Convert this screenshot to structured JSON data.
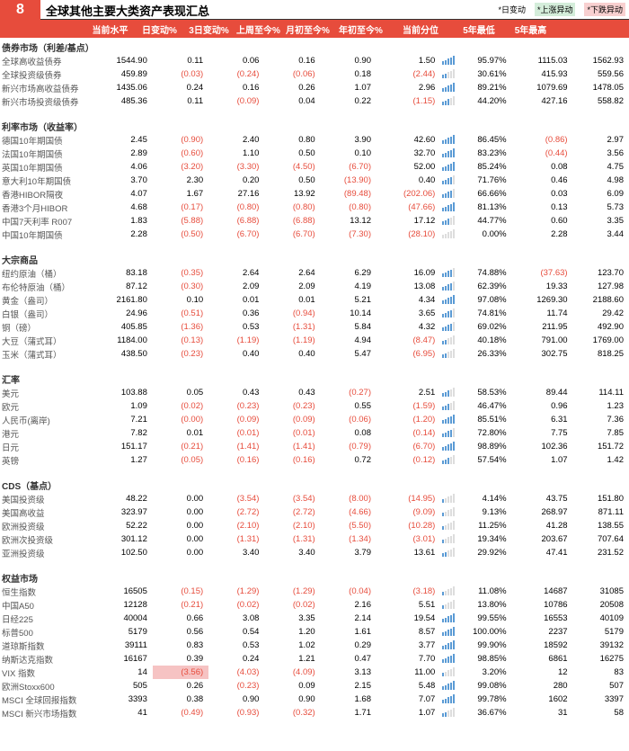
{
  "pageNum": "8",
  "title": "全球其他主要大类资产表现汇总",
  "legend": {
    "a": "*日变动",
    "b": "*上涨异动",
    "c": "*下跌异动"
  },
  "cols": [
    "当前水平",
    "日变动%",
    "3日变动%",
    "上周至今%",
    "月初至今%",
    "年初至今%",
    "当前分位",
    "5年最低",
    "5年最高"
  ],
  "sections": [
    {
      "name": "债券市场（利差/基点）",
      "rows": [
        [
          "全球高收益债券",
          "1544.90",
          "0.11",
          "0.06",
          "0.16",
          "0.90",
          "1.50",
          "95.97%",
          "1115.03",
          "1562.93",
          0,
          0,
          0,
          0,
          0,
          0,
          5
        ],
        [
          "全球投资级债券",
          "459.89",
          "(0.03)",
          "(0.24)",
          "(0.06)",
          "0.18",
          "(2.44)",
          "30.61%",
          "415.93",
          "559.56",
          0,
          1,
          1,
          1,
          0,
          1,
          2
        ],
        [
          "新兴市场高收益债券",
          "1435.06",
          "0.24",
          "0.16",
          "0.26",
          "1.07",
          "2.96",
          "89.21%",
          "1079.69",
          "1478.05",
          0,
          0,
          0,
          0,
          0,
          0,
          5
        ],
        [
          "新兴市场投资级债券",
          "485.36",
          "0.11",
          "(0.09)",
          "0.04",
          "0.22",
          "(1.15)",
          "44.20%",
          "427.16",
          "558.82",
          0,
          0,
          1,
          0,
          0,
          1,
          3
        ]
      ]
    },
    {
      "name": "利率市场（收益率）",
      "rows": [
        [
          "德国10年期国债",
          "2.45",
          "(0.90)",
          "2.40",
          "0.80",
          "3.90",
          "42.60",
          "86.45%",
          "(0.86)",
          "2.97",
          0,
          1,
          0,
          0,
          0,
          0,
          5,
          1,
          0
        ],
        [
          "法国10年期国债",
          "2.89",
          "(0.60)",
          "1.10",
          "0.50",
          "0.10",
          "32.70",
          "83.23%",
          "(0.44)",
          "3.56",
          0,
          1,
          0,
          0,
          0,
          0,
          5,
          1,
          0
        ],
        [
          "英国10年期国债",
          "4.06",
          "(3.20)",
          "(3.30)",
          "(4.50)",
          "(6.70)",
          "52.00",
          "85.24%",
          "0.08",
          "4.75",
          0,
          1,
          1,
          1,
          1,
          0,
          5
        ],
        [
          "意大利10年期国债",
          "3.70",
          "2.30",
          "0.20",
          "0.50",
          "(13.90)",
          "0.40",
          "71.76%",
          "0.46",
          "4.98",
          0,
          0,
          0,
          0,
          1,
          0,
          4
        ],
        [
          "香港HIBOR隔夜",
          "4.07",
          "1.67",
          "27.16",
          "13.92",
          "(89.48)",
          "(202.06)",
          "66.66%",
          "0.03",
          "6.09",
          0,
          0,
          0,
          0,
          1,
          1,
          4
        ],
        [
          "香港3个月HIBOR",
          "4.68",
          "(0.17)",
          "(0.80)",
          "(0.80)",
          "(0.80)",
          "(47.66)",
          "81.13%",
          "0.13",
          "5.73",
          0,
          1,
          1,
          1,
          1,
          1,
          5
        ],
        [
          "中国7天利率 R007",
          "1.83",
          "(5.88)",
          "(6.88)",
          "(6.88)",
          "13.12",
          "17.12",
          "44.77%",
          "0.60",
          "3.35",
          0,
          1,
          1,
          1,
          0,
          0,
          3
        ],
        [
          "中国10年期国债",
          "2.28",
          "(0.50)",
          "(6.70)",
          "(6.70)",
          "(7.30)",
          "(28.10)",
          "0.00%",
          "2.28",
          "3.44",
          0,
          1,
          1,
          1,
          1,
          1,
          0
        ]
      ]
    },
    {
      "name": "大宗商品",
      "rows": [
        [
          "纽约原油（桶）",
          "83.18",
          "(0.35)",
          "2.64",
          "2.64",
          "6.29",
          "16.09",
          "74.88%",
          "(37.63)",
          "123.70",
          0,
          1,
          0,
          0,
          0,
          0,
          4,
          1,
          0
        ],
        [
          "布伦特原油（桶）",
          "87.12",
          "(0.30)",
          "2.09",
          "2.09",
          "4.19",
          "13.08",
          "62.39%",
          "19.33",
          "127.98",
          0,
          1,
          0,
          0,
          0,
          0,
          4
        ],
        [
          "黄金（盎司）",
          "2161.80",
          "0.10",
          "0.01",
          "0.01",
          "5.21",
          "4.34",
          "97.08%",
          "1269.30",
          "2188.60",
          0,
          0,
          0,
          0,
          0,
          0,
          5
        ],
        [
          "白银（盎司）",
          "24.96",
          "(0.51)",
          "0.36",
          "(0.94)",
          "10.14",
          "3.65",
          "74.81%",
          "11.74",
          "29.42",
          0,
          1,
          0,
          1,
          0,
          0,
          4
        ],
        [
          "铜（磅）",
          "405.85",
          "(1.36)",
          "0.53",
          "(1.31)",
          "5.84",
          "4.32",
          "69.02%",
          "211.95",
          "492.90",
          0,
          1,
          0,
          1,
          0,
          0,
          4
        ],
        [
          "大豆（蒲式耳）",
          "1184.00",
          "(0.13)",
          "(1.19)",
          "(1.19)",
          "4.94",
          "(8.47)",
          "40.18%",
          "791.00",
          "1769.00",
          0,
          1,
          1,
          1,
          0,
          1,
          2
        ],
        [
          "玉米（蒲式耳）",
          "438.50",
          "(0.23)",
          "0.40",
          "0.40",
          "5.47",
          "(6.95)",
          "26.33%",
          "302.75",
          "818.25",
          0,
          1,
          0,
          0,
          0,
          1,
          2
        ]
      ]
    },
    {
      "name": "汇率",
      "rows": [
        [
          "美元",
          "103.88",
          "0.05",
          "0.43",
          "0.43",
          "(0.27)",
          "2.51",
          "58.53%",
          "89.44",
          "114.11",
          0,
          0,
          0,
          0,
          1,
          0,
          3
        ],
        [
          "欧元",
          "1.09",
          "(0.02)",
          "(0.23)",
          "(0.23)",
          "0.55",
          "(1.59)",
          "46.47%",
          "0.96",
          "1.23",
          0,
          1,
          1,
          1,
          0,
          1,
          3
        ],
        [
          "人民币(离岸)",
          "7.21",
          "(0.00)",
          "(0.09)",
          "(0.09)",
          "(0.06)",
          "(1.20)",
          "85.51%",
          "6.31",
          "7.36",
          0,
          1,
          1,
          1,
          1,
          1,
          5
        ],
        [
          "港元",
          "7.82",
          "0.01",
          "(0.01)",
          "(0.01)",
          "0.08",
          "(0.14)",
          "72.80%",
          "7.75",
          "7.85",
          0,
          0,
          1,
          1,
          0,
          1,
          4
        ],
        [
          "日元",
          "151.17",
          "(0.21)",
          "(1.41)",
          "(1.41)",
          "(0.79)",
          "(6.70)",
          "98.89%",
          "102.36",
          "151.72",
          0,
          1,
          1,
          1,
          1,
          1,
          5
        ],
        [
          "英镑",
          "1.27",
          "(0.05)",
          "(0.16)",
          "(0.16)",
          "0.72",
          "(0.12)",
          "57.54%",
          "1.07",
          "1.42",
          0,
          1,
          1,
          1,
          0,
          1,
          3
        ]
      ]
    },
    {
      "name": "CDS（基点）",
      "rows": [
        [
          "美国投资级",
          "48.22",
          "0.00",
          "(3.54)",
          "(3.54)",
          "(8.00)",
          "(14.95)",
          "4.14%",
          "43.75",
          "151.80",
          0,
          0,
          1,
          1,
          1,
          1,
          1
        ],
        [
          "美国高收益",
          "323.97",
          "0.00",
          "(2.72)",
          "(2.72)",
          "(4.66)",
          "(9.09)",
          "9.13%",
          "268.97",
          "871.11",
          0,
          0,
          1,
          1,
          1,
          1,
          1
        ],
        [
          "欧洲投资级",
          "52.22",
          "0.00",
          "(2.10)",
          "(2.10)",
          "(5.50)",
          "(10.28)",
          "11.25%",
          "41.28",
          "138.55",
          0,
          0,
          1,
          1,
          1,
          1,
          1
        ],
        [
          "欧洲次投资级",
          "301.12",
          "0.00",
          "(1.31)",
          "(1.31)",
          "(1.34)",
          "(3.01)",
          "19.34%",
          "203.67",
          "707.64",
          0,
          0,
          1,
          1,
          1,
          1,
          1
        ],
        [
          "亚洲投资级",
          "102.50",
          "0.00",
          "3.40",
          "3.40",
          "3.79",
          "13.61",
          "29.92%",
          "47.41",
          "231.52",
          0,
          0,
          0,
          0,
          0,
          0,
          2
        ]
      ]
    },
    {
      "name": "权益市场",
      "rows": [
        [
          "恒生指数",
          "16505",
          "(0.15)",
          "(1.29)",
          "(1.29)",
          "(0.04)",
          "(3.18)",
          "11.08%",
          "14687",
          "31085",
          0,
          1,
          1,
          1,
          1,
          1,
          1
        ],
        [
          "中国A50",
          "12128",
          "(0.21)",
          "(0.02)",
          "(0.02)",
          "2.16",
          "5.51",
          "13.80%",
          "10786",
          "20508",
          0,
          1,
          1,
          1,
          0,
          0,
          1
        ],
        [
          "日经225",
          "40004",
          "0.66",
          "3.08",
          "3.35",
          "2.14",
          "19.54",
          "99.55%",
          "16553",
          "40109",
          0,
          0,
          0,
          0,
          0,
          0,
          5
        ],
        [
          "标普500",
          "5179",
          "0.56",
          "0.54",
          "1.20",
          "1.61",
          "8.57",
          "100.00%",
          "2237",
          "5179",
          0,
          0,
          0,
          0,
          0,
          0,
          5
        ],
        [
          "道琼斯指数",
          "39111",
          "0.83",
          "0.53",
          "1.02",
          "0.29",
          "3.77",
          "99.90%",
          "18592",
          "39132",
          0,
          0,
          0,
          0,
          0,
          0,
          5
        ],
        [
          "纳斯达克指数",
          "16167",
          "0.39",
          "0.24",
          "1.21",
          "0.47",
          "7.70",
          "98.85%",
          "6861",
          "16275",
          0,
          0,
          0,
          0,
          0,
          0,
          5
        ],
        [
          "VIX 指数",
          "14",
          "(3.56)",
          "(4.03)",
          "(4.09)",
          "3.13",
          "11.00",
          "3.20%",
          "12",
          "83",
          0,
          1,
          1,
          1,
          0,
          0,
          1,
          0,
          0,
          "hl"
        ],
        [
          "欧洲Stoxx600",
          "505",
          "0.26",
          "(0.23)",
          "0.09",
          "2.15",
          "5.48",
          "99.08%",
          "280",
          "507",
          0,
          0,
          1,
          0,
          0,
          0,
          5
        ],
        [
          "MSCI 全球回报指数",
          "3393",
          "0.38",
          "0.90",
          "0.90",
          "1.68",
          "7.07",
          "99.78%",
          "1602",
          "3397",
          0,
          0,
          0,
          0,
          0,
          0,
          5
        ],
        [
          "MSCI 新兴市场指数",
          "41",
          "(0.49)",
          "(0.93)",
          "(0.32)",
          "1.71",
          "1.07",
          "36.67%",
          "31",
          "58",
          0,
          1,
          1,
          1,
          0,
          0,
          2
        ]
      ]
    }
  ]
}
